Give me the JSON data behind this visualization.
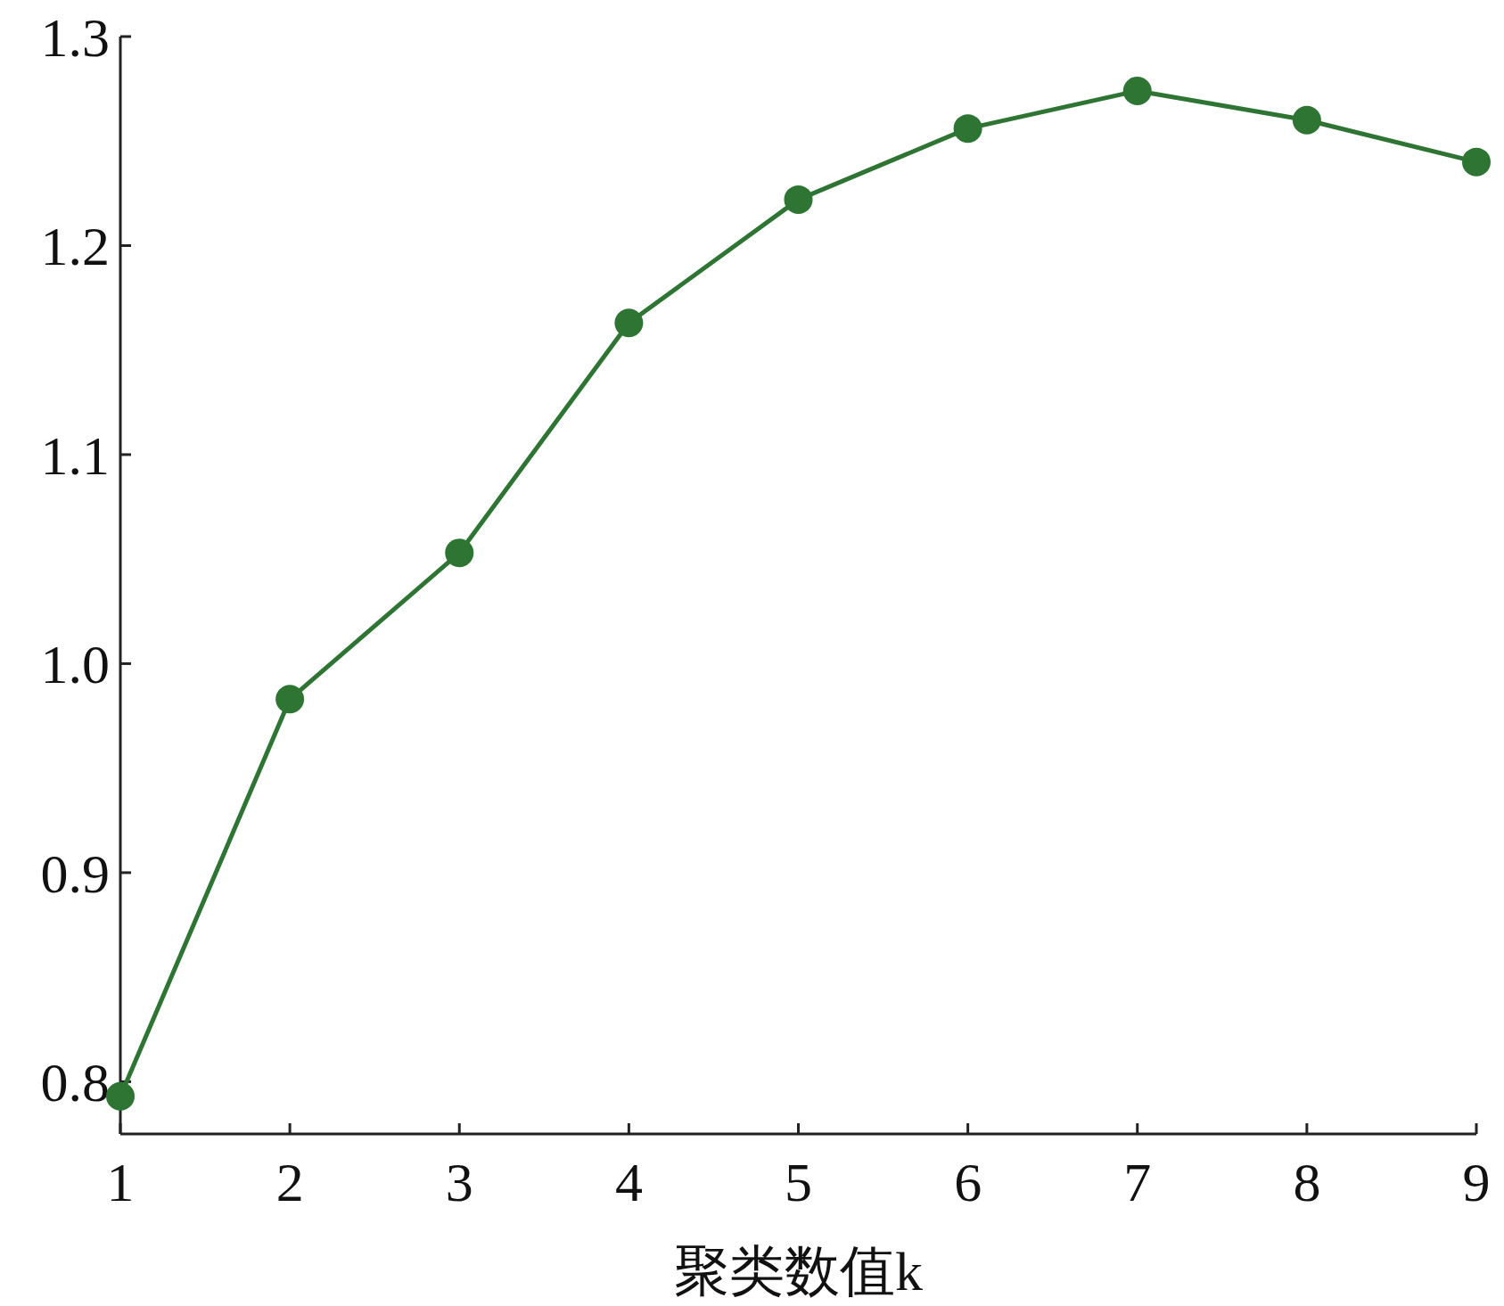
{
  "chart_data": {
    "type": "line",
    "xlabel": "聚类数值k",
    "x": [
      1,
      2,
      3,
      4,
      5,
      6,
      7,
      8,
      9
    ],
    "series": [
      {
        "color": "#2e7533",
        "values": [
          0.793,
          0.983,
          1.053,
          1.163,
          1.222,
          1.256,
          1.274,
          1.26,
          1.24
        ]
      }
    ],
    "xlim": [
      1,
      9
    ],
    "xticks": [
      1,
      2,
      3,
      4,
      5,
      6,
      7,
      8,
      9
    ],
    "ylim": [
      0.775,
      1.3
    ],
    "yticks": [
      {
        "value": 0.8,
        "label": "0.8"
      },
      {
        "value": 0.9,
        "label": "0.9"
      },
      {
        "value": 1.0,
        "label": "1.0"
      },
      {
        "value": 1.1,
        "label": "1.1"
      },
      {
        "value": 1.2,
        "label": "1.2"
      },
      {
        "value": 1.3,
        "label": "1.3"
      }
    ],
    "marker": "circle",
    "line_style": "solid"
  }
}
